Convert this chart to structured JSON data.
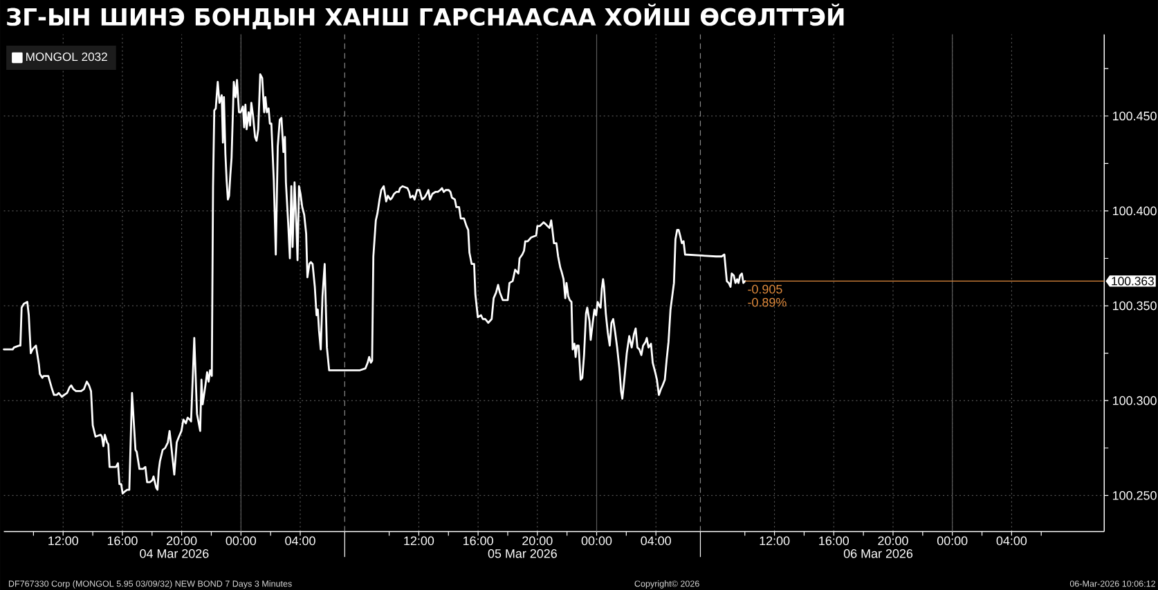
{
  "chart_data": {
    "type": "line",
    "title": "ЗГ-ЫН ШИНЭ БОНДЫН ХАНШ ГАРСНААСАА ХОЙШ ӨСӨЛТТЭЙ",
    "x": [
      "2026-03-04T08:00",
      "2026-03-04T08:36",
      "2026-03-04T08:41",
      "2026-03-04T09:02",
      "2026-03-04T09:07",
      "2026-03-04T09:12",
      "2026-03-04T09:21",
      "2026-03-04T09:35",
      "2026-03-04T09:41",
      "2026-03-04T09:49",
      "2026-03-04T09:56",
      "2026-03-04T10:10",
      "2026-03-04T10:22",
      "2026-03-04T10:26",
      "2026-03-04T10:36",
      "2026-03-04T10:41",
      "2026-03-04T11:00",
      "2026-03-04T11:13",
      "2026-03-04T11:23",
      "2026-03-04T11:34",
      "2026-03-04T11:42",
      "2026-03-04T11:55",
      "2026-03-04T12:05",
      "2026-03-04T12:16",
      "2026-03-04T12:26",
      "2026-03-04T12:33",
      "2026-03-04T12:42",
      "2026-03-04T12:52",
      "2026-03-04T13:13",
      "2026-03-04T13:24",
      "2026-03-04T13:36",
      "2026-03-04T13:45",
      "2026-03-04T13:53",
      "2026-03-04T14:00",
      "2026-03-04T14:11",
      "2026-03-04T14:32",
      "2026-03-04T14:37",
      "2026-03-04T14:43",
      "2026-03-04T14:49",
      "2026-03-04T14:58",
      "2026-03-04T15:03",
      "2026-03-04T15:08",
      "2026-03-04T15:34",
      "2026-03-04T15:42",
      "2026-03-04T15:48",
      "2026-03-04T15:55",
      "2026-03-04T16:01",
      "2026-03-04T16:09",
      "2026-03-04T16:19",
      "2026-03-04T16:28",
      "2026-03-04T16:39",
      "2026-03-04T16:53",
      "2026-03-04T16:58",
      "2026-03-04T17:09",
      "2026-03-04T17:24",
      "2026-03-04T17:33",
      "2026-03-04T17:40",
      "2026-03-04T17:51",
      "2026-03-04T18:01",
      "2026-03-04T18:06",
      "2026-03-04T18:17",
      "2026-03-04T18:22",
      "2026-03-04T18:27",
      "2026-03-04T18:32",
      "2026-03-04T18:43",
      "2026-03-04T18:53",
      "2026-03-04T19:04",
      "2026-03-04T19:11",
      "2026-03-04T19:17",
      "2026-03-04T19:30",
      "2026-03-04T19:40",
      "2026-03-04T19:49",
      "2026-03-04T19:59",
      "2026-03-04T20:07",
      "2026-03-04T20:17",
      "2026-03-04T20:24",
      "2026-03-04T20:33",
      "2026-03-04T20:38",
      "2026-03-04T20:51",
      "2026-03-04T21:02",
      "2026-03-04T21:15",
      "2026-03-04T21:20",
      "2026-03-04T21:25",
      "2026-03-04T21:36",
      "2026-03-04T21:43",
      "2026-03-04T21:49",
      "2026-03-04T21:55",
      "2026-03-04T22:02",
      "2026-03-04T22:07",
      "2026-03-04T22:12",
      "2026-03-04T22:18",
      "2026-03-04T22:26",
      "2026-03-04T22:33",
      "2026-03-04T22:42",
      "2026-03-04T22:47",
      "2026-03-04T22:51",
      "2026-03-04T22:57",
      "2026-03-04T23:02",
      "2026-03-04T23:07",
      "2026-03-04T23:12",
      "2026-03-04T23:17",
      "2026-03-04T23:22",
      "2026-03-04T23:31",
      "2026-03-04T23:38",
      "2026-03-04T23:44",
      "2026-03-04T23:52",
      "2026-03-04T23:59",
      "2026-03-05T00:08",
      "2026-03-05T00:13",
      "2026-03-05T00:18",
      "2026-03-05T00:23",
      "2026-03-05T00:31",
      "2026-03-05T00:37",
      "2026-03-05T00:42",
      "2026-03-05T00:49",
      "2026-03-05T00:57",
      "2026-03-05T01:03",
      "2026-03-05T01:10",
      "2026-03-05T01:18",
      "2026-03-05T01:26",
      "2026-03-05T01:34",
      "2026-03-05T01:39",
      "2026-03-05T01:45",
      "2026-03-05T01:52",
      "2026-03-05T01:57",
      "2026-03-05T02:03",
      "2026-03-05T02:13",
      "2026-03-05T02:21",
      "2026-03-05T02:29",
      "2026-03-05T02:37",
      "2026-03-05T02:44",
      "2026-03-05T02:52",
      "2026-03-05T02:58",
      "2026-03-05T03:02",
      "2026-03-05T03:11",
      "2026-03-05T03:18",
      "2026-03-05T03:24",
      "2026-03-05T03:29",
      "2026-03-05T03:37",
      "2026-03-05T03:44",
      "2026-03-05T03:49",
      "2026-03-05T03:55",
      "2026-03-05T04:01",
      "2026-03-05T04:08",
      "2026-03-05T04:16",
      "2026-03-05T04:24",
      "2026-03-05T04:29",
      "2026-03-05T04:37",
      "2026-03-05T04:43",
      "2026-03-05T04:50",
      "2026-03-05T04:59",
      "2026-03-05T05:06",
      "2026-03-05T05:11",
      "2026-03-05T05:16",
      "2026-03-05T05:23",
      "2026-03-05T05:30",
      "2026-03-05T05:39",
      "2026-03-05T05:48",
      "2026-03-05T05:57",
      "2026-03-05T08:02",
      "2026-03-05T08:24",
      "2026-03-05T08:33",
      "2026-03-05T08:39",
      "2026-03-05T08:46",
      "2026-03-05T08:51",
      "2026-03-05T08:56",
      "2026-03-05T09:06",
      "2026-03-05T09:13",
      "2026-03-05T09:21",
      "2026-03-05T09:28",
      "2026-03-05T09:38",
      "2026-03-05T09:43",
      "2026-03-05T09:48",
      "2026-03-05T09:55",
      "2026-03-05T10:05",
      "2026-03-05T10:12",
      "2026-03-05T10:20",
      "2026-03-05T10:29",
      "2026-03-05T10:39",
      "2026-03-05T10:44",
      "2026-03-05T10:54",
      "2026-03-05T11:14",
      "2026-03-05T11:21",
      "2026-03-05T11:26",
      "2026-03-05T11:36",
      "2026-03-05T11:43",
      "2026-03-05T11:53",
      "2026-03-05T12:03",
      "2026-03-05T12:13",
      "2026-03-05T12:23",
      "2026-03-05T12:32",
      "2026-03-05T12:39",
      "2026-03-05T12:45",
      "2026-03-05T12:55",
      "2026-03-05T13:07",
      "2026-03-05T13:17",
      "2026-03-05T13:27",
      "2026-03-05T13:34",
      "2026-03-05T13:41",
      "2026-03-05T13:49",
      "2026-03-05T14:01",
      "2026-03-05T14:08",
      "2026-03-05T14:14",
      "2026-03-05T14:26",
      "2026-03-05T14:32",
      "2026-03-05T14:43",
      "2026-03-05T14:50",
      "2026-03-05T15:03",
      "2026-03-05T15:13",
      "2026-03-05T15:20",
      "2026-03-05T15:25",
      "2026-03-05T15:34",
      "2026-03-05T15:44",
      "2026-03-05T15:49",
      "2026-03-05T15:59",
      "2026-03-05T16:12",
      "2026-03-05T16:19",
      "2026-03-05T16:29",
      "2026-03-05T16:35",
      "2026-03-05T16:41",
      "2026-03-05T16:48",
      "2026-03-05T16:55",
      "2026-03-05T17:03",
      "2026-03-05T17:13",
      "2026-03-05T17:21",
      "2026-03-05T17:28",
      "2026-03-05T17:40",
      "2026-03-05T17:52",
      "2026-03-05T18:00",
      "2026-03-05T18:07",
      "2026-03-05T18:20",
      "2026-03-05T18:30",
      "2026-03-05T18:43",
      "2026-03-05T18:48",
      "2026-03-05T18:59",
      "2026-03-05T19:06",
      "2026-03-05T19:11",
      "2026-03-05T19:21",
      "2026-03-05T19:28",
      "2026-03-05T19:35",
      "2026-03-05T19:55",
      "2026-03-05T20:00",
      "2026-03-05T20:10",
      "2026-03-05T20:18",
      "2026-03-05T20:25",
      "2026-03-05T20:34",
      "2026-03-05T20:41",
      "2026-03-05T20:49",
      "2026-03-05T20:56",
      "2026-03-05T21:01",
      "2026-03-05T21:07",
      "2026-03-05T21:17",
      "2026-03-05T21:24",
      "2026-03-05T21:33",
      "2026-03-05T21:38",
      "2026-03-05T21:46",
      "2026-03-05T21:53",
      "2026-03-05T21:58",
      "2026-03-05T22:05",
      "2026-03-05T22:11",
      "2026-03-05T22:18",
      "2026-03-05T22:23",
      "2026-03-05T22:30",
      "2026-03-05T22:35",
      "2026-03-05T22:40",
      "2026-03-05T22:47",
      "2026-03-05T22:55",
      "2026-03-05T23:02",
      "2026-03-05T23:09",
      "2026-03-05T23:17",
      "2026-03-05T23:22",
      "2026-03-05T23:27",
      "2026-03-05T23:31",
      "2026-03-05T23:36",
      "2026-03-05T23:44",
      "2026-03-05T23:51",
      "2026-03-05T23:58",
      "2026-03-06T00:04",
      "2026-03-06T00:11",
      "2026-03-06T00:16",
      "2026-03-06T00:21",
      "2026-03-06T00:26",
      "2026-03-06T00:30",
      "2026-03-06T00:37",
      "2026-03-06T00:45",
      "2026-03-06T00:53",
      "2026-03-06T01:00",
      "2026-03-06T01:07",
      "2026-03-06T01:15",
      "2026-03-06T01:23",
      "2026-03-06T01:32",
      "2026-03-06T01:39",
      "2026-03-06T01:44",
      "2026-03-06T01:52",
      "2026-03-06T02:02",
      "2026-03-06T02:12",
      "2026-03-06T02:22",
      "2026-03-06T02:31",
      "2026-03-06T02:38",
      "2026-03-06T02:45",
      "2026-03-06T02:53",
      "2026-03-06T03:01",
      "2026-03-06T03:08",
      "2026-03-06T03:18",
      "2026-03-06T03:23",
      "2026-03-06T03:30",
      "2026-03-06T03:40",
      "2026-03-06T03:47",
      "2026-03-06T03:57",
      "2026-03-06T04:04",
      "2026-03-06T04:12",
      "2026-03-06T04:20",
      "2026-03-06T04:27",
      "2026-03-06T04:36",
      "2026-03-06T04:43",
      "2026-03-06T04:51",
      "2026-03-06T04:59",
      "2026-03-06T05:06",
      "2026-03-06T05:13",
      "2026-03-06T05:19",
      "2026-03-06T05:26",
      "2026-03-06T05:32",
      "2026-03-06T05:38",
      "2026-03-06T05:45",
      "2026-03-06T05:52",
      "2026-03-06T05:58",
      "2026-03-06T08:03",
      "2026-03-06T08:13",
      "2026-03-06T08:26",
      "2026-03-06T08:37",
      "2026-03-06T08:47",
      "2026-03-06T08:55",
      "2026-03-06T09:02",
      "2026-03-06T09:07",
      "2026-03-06T09:15",
      "2026-03-06T09:22",
      "2026-03-06T09:29",
      "2026-03-06T09:34",
      "2026-03-06T09:41",
      "2026-03-06T09:48",
      "2026-03-06T09:54",
      "2026-03-06T10:01"
    ],
    "series": [
      {
        "name": "MONGOL 2032",
        "color": "#ffffff",
        "values": [
          100.327,
          100.327,
          100.328,
          100.329,
          100.329,
          100.349,
          100.351,
          100.352,
          100.345,
          100.325,
          100.327,
          100.329,
          100.319,
          100.314,
          100.312,
          100.313,
          100.313,
          100.307,
          100.303,
          100.303,
          100.304,
          100.302,
          100.303,
          100.304,
          100.307,
          100.308,
          100.306,
          100.305,
          100.305,
          100.306,
          100.31,
          100.308,
          100.305,
          100.287,
          100.281,
          100.282,
          100.281,
          100.276,
          100.282,
          100.278,
          100.277,
          100.265,
          100.265,
          100.267,
          100.256,
          100.256,
          100.251,
          100.252,
          100.253,
          100.253,
          100.304,
          100.274,
          100.273,
          100.264,
          100.264,
          100.265,
          100.257,
          100.257,
          100.258,
          100.26,
          100.254,
          100.253,
          100.263,
          100.268,
          100.274,
          100.275,
          100.278,
          100.284,
          100.277,
          100.261,
          100.278,
          100.281,
          100.284,
          100.29,
          100.288,
          100.291,
          100.29,
          100.289,
          100.333,
          100.293,
          100.284,
          100.311,
          100.298,
          100.308,
          100.315,
          100.31,
          100.316,
          100.313,
          100.413,
          100.453,
          100.454,
          100.468,
          100.457,
          100.461,
          100.436,
          100.46,
          100.43,
          100.416,
          100.406,
          100.408,
          100.419,
          100.428,
          100.468,
          100.46,
          100.469,
          100.452,
          100.452,
          100.455,
          100.444,
          100.456,
          100.443,
          100.452,
          100.445,
          100.457,
          100.45,
          100.439,
          100.437,
          100.443,
          100.472,
          100.47,
          100.452,
          100.46,
          100.452,
          100.454,
          100.446,
          100.446,
          100.416,
          100.377,
          100.434,
          100.448,
          100.449,
          100.431,
          100.439,
          100.415,
          100.394,
          100.375,
          100.413,
          100.381,
          100.415,
          100.394,
          100.374,
          100.413,
          100.409,
          100.402,
          100.398,
          100.388,
          100.365,
          100.372,
          100.373,
          100.372,
          100.36,
          100.345,
          100.348,
          100.337,
          100.327,
          100.355,
          100.372,
          100.328,
          100.316,
          100.316,
          100.317,
          100.32,
          100.323,
          100.32,
          100.321,
          100.376,
          100.395,
          100.399,
          100.406,
          100.411,
          100.413,
          100.409,
          100.405,
          100.408,
          100.406,
          100.407,
          100.409,
          100.41,
          100.41,
          100.412,
          100.413,
          100.412,
          100.41,
          100.407,
          100.408,
          100.406,
          100.411,
          100.411,
          100.406,
          100.407,
          100.409,
          100.411,
          100.406,
          100.409,
          100.41,
          100.41,
          100.411,
          100.412,
          100.41,
          100.411,
          100.411,
          100.41,
          100.407,
          100.406,
          100.402,
          100.402,
          100.396,
          100.396,
          100.392,
          100.39,
          100.378,
          100.372,
          100.372,
          100.356,
          100.344,
          100.345,
          100.343,
          100.343,
          100.342,
          100.341,
          100.342,
          100.343,
          100.354,
          100.357,
          100.361,
          100.357,
          100.353,
          100.353,
          100.353,
          100.362,
          100.363,
          100.369,
          100.367,
          100.375,
          100.377,
          100.379,
          100.384,
          100.384,
          100.385,
          100.386,
          100.387,
          100.392,
          100.392,
          100.393,
          100.394,
          100.393,
          100.392,
          100.391,
          100.395,
          100.39,
          100.383,
          100.383,
          100.376,
          100.37,
          100.368,
          100.364,
          100.354,
          100.362,
          100.355,
          100.353,
          100.352,
          100.327,
          100.33,
          100.323,
          100.329,
          100.329,
          100.311,
          100.312,
          100.324,
          100.346,
          100.349,
          100.345,
          100.342,
          100.332,
          100.341,
          100.348,
          100.345,
          100.352,
          100.35,
          100.349,
          100.359,
          100.364,
          100.36,
          100.346,
          100.336,
          100.329,
          100.341,
          100.343,
          100.336,
          100.328,
          100.317,
          100.305,
          100.301,
          100.311,
          100.325,
          100.334,
          100.328,
          100.335,
          100.338,
          100.328,
          100.327,
          100.324,
          100.329,
          100.331,
          100.333,
          100.328,
          100.33,
          100.32,
          100.315,
          100.311,
          100.303,
          100.306,
          100.308,
          100.311,
          100.321,
          100.331,
          100.348,
          100.355,
          100.362,
          100.385,
          100.39,
          100.39,
          100.387,
          100.383,
          100.384,
          100.377,
          100.376,
          100.376,
          100.376,
          100.377,
          100.363,
          100.362,
          100.36,
          100.367,
          100.366,
          100.362,
          100.364,
          100.362,
          100.366,
          100.367,
          100.362,
          100.363
        ]
      }
    ],
    "xlim": [
      "2026-03-04T08:00",
      "2026-03-07T10:15"
    ],
    "xticks": [
      {
        "value": "2026-03-04T10:00",
        "label": null
      },
      {
        "value": "2026-03-04T12:00",
        "label": "12:00"
      },
      {
        "value": "2026-03-04T14:00",
        "label": null
      },
      {
        "value": "2026-03-04T16:00",
        "label": "16:00"
      },
      {
        "value": "2026-03-04T18:00",
        "label": null
      },
      {
        "value": "2026-03-04T20:00",
        "label": "20:00"
      },
      {
        "value": "2026-03-04T22:00",
        "label": null
      },
      {
        "value": "2026-03-05T00:00",
        "label": "00:00"
      },
      {
        "value": "2026-03-05T02:00",
        "label": null
      },
      {
        "value": "2026-03-05T04:00",
        "label": "04:00"
      },
      {
        "value": "2026-03-05T10:00",
        "label": null
      },
      {
        "value": "2026-03-05T12:00",
        "label": "12:00"
      },
      {
        "value": "2026-03-05T14:00",
        "label": null
      },
      {
        "value": "2026-03-05T16:00",
        "label": "16:00"
      },
      {
        "value": "2026-03-05T18:00",
        "label": null
      },
      {
        "value": "2026-03-05T20:00",
        "label": "20:00"
      },
      {
        "value": "2026-03-05T22:00",
        "label": null
      },
      {
        "value": "2026-03-06T00:00",
        "label": "00:00"
      },
      {
        "value": "2026-03-06T02:00",
        "label": null
      },
      {
        "value": "2026-03-06T04:00",
        "label": "04:00"
      },
      {
        "value": "2026-03-06T10:00",
        "label": null
      },
      {
        "value": "2026-03-06T12:00",
        "label": "12:00"
      },
      {
        "value": "2026-03-06T14:00",
        "label": null
      },
      {
        "value": "2026-03-06T16:00",
        "label": "16:00"
      },
      {
        "value": "2026-03-06T18:00",
        "label": null
      },
      {
        "value": "2026-03-06T20:00",
        "label": "20:00"
      },
      {
        "value": "2026-03-06T22:00",
        "label": null
      },
      {
        "value": "2026-03-07T00:00",
        "label": "00:00"
      },
      {
        "value": "2026-03-07T02:00",
        "label": null
      },
      {
        "value": "2026-03-07T04:00",
        "label": "04:00"
      },
      {
        "value": "2026-03-07T06:00",
        "label": null
      }
    ],
    "ylim": [
      100.231,
      100.493
    ],
    "yticks": [
      {
        "value": 100.25,
        "label": "100.250"
      },
      {
        "value": 100.275,
        "label": null
      },
      {
        "value": 100.3,
        "label": "100.300"
      },
      {
        "value": 100.325,
        "label": null
      },
      {
        "value": 100.35,
        "label": "100.350"
      },
      {
        "value": 100.375,
        "label": null
      },
      {
        "value": 100.4,
        "label": "100.400"
      },
      {
        "value": 100.425,
        "label": null
      },
      {
        "value": 100.45,
        "label": "100.450"
      },
      {
        "value": 100.475,
        "label": null
      }
    ],
    "grid": true,
    "legend": "top left",
    "ref_lines": [
      {
        "axis": "y",
        "value": 100.363,
        "label": "100.363",
        "color": "#e08a3c"
      },
      {
        "axis": "x",
        "value": "2026-03-05T07:00",
        "color": "#8a8a8a",
        "line_style": "dashed"
      },
      {
        "axis": "x",
        "value": "2026-03-06T07:00",
        "color": "#8a8a8a",
        "line_style": "dashed"
      }
    ],
    "annotations": [
      {
        "text": "-0.905",
        "x": "2026-03-06T10:01",
        "y": 100.363
      },
      {
        "text": "-0.89%",
        "x": "2026-03-06T10:01",
        "y": 100.363
      },
      "04 Mar 2026",
      "05 Mar 2026",
      "06 Mar 2026",
      "DF767330 Corp (MONGOL 5.95 03/09/32) NEW BOND 7 Days 3 Minutes",
      "Copyright© 2026",
      "06-Mar-2026 10:06:12"
    ]
  }
}
